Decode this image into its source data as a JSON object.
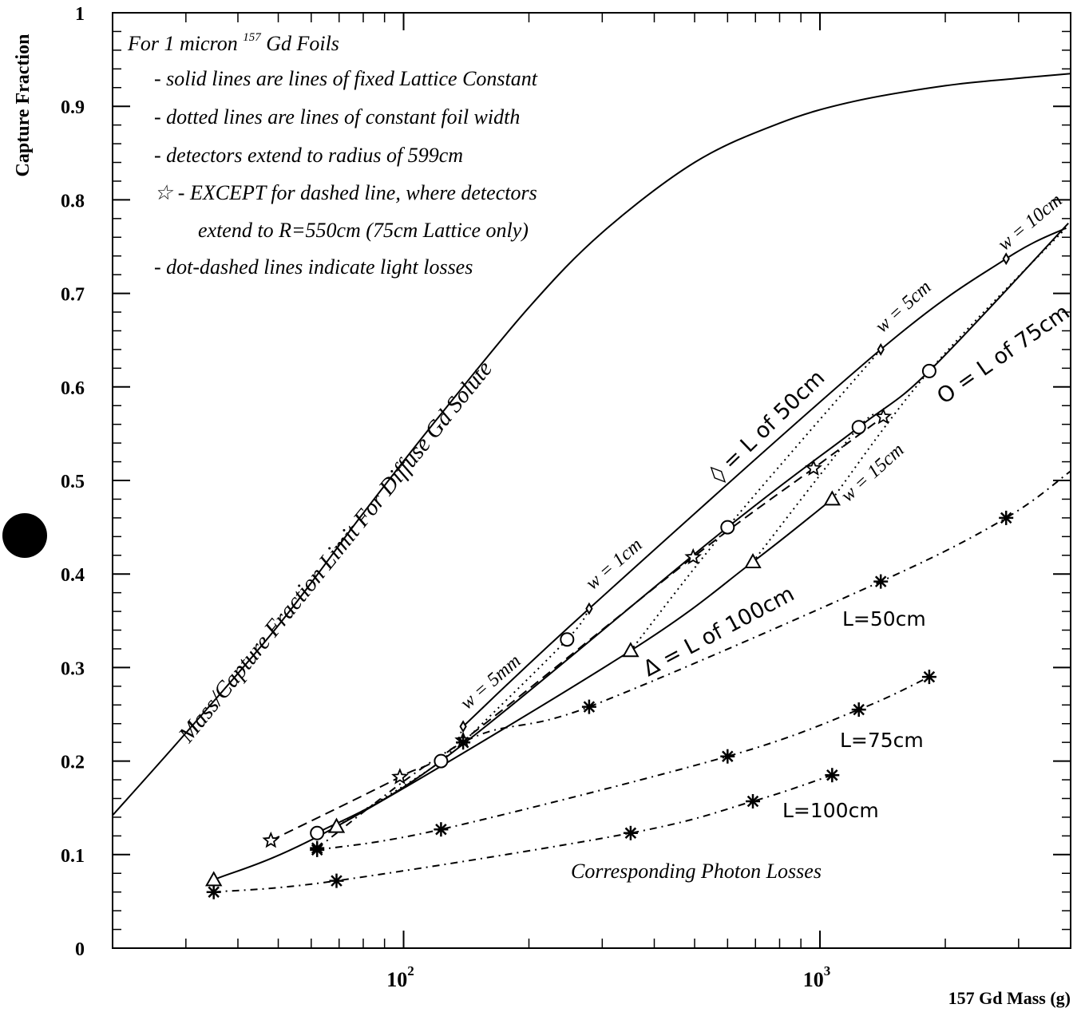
{
  "chart_data": {
    "type": "line",
    "title": "",
    "xlabel": "157 Gd Mass (g)",
    "ylabel": "Capture Fraction",
    "x_scale": "log",
    "xlim": [
      20,
      4000
    ],
    "ylim": [
      0,
      1
    ],
    "x_tick_labels": [
      {
        "value": 100,
        "base": "10",
        "exp": "2"
      },
      {
        "value": 1000,
        "base": "10",
        "exp": "3"
      }
    ],
    "y_ticks": [
      0,
      0.1,
      0.2,
      0.3,
      0.4,
      0.5,
      0.6,
      0.7,
      0.8,
      0.9,
      1
    ],
    "y_tick_labels": [
      "0",
      "0.1",
      "0.2",
      "0.3",
      "0.4",
      "0.5",
      "0.6",
      "0.7",
      "0.8",
      "0.9",
      "1"
    ],
    "legend_box": {
      "title_pre": "For 1 micron ",
      "title_sup": "157",
      "title_post": " Gd Foils",
      "lines": [
        "- solid lines are lines of fixed Lattice Constant",
        "- dotted lines are lines of constant foil width",
        "- detectors extend to radius of 599cm",
        "☆ - EXCEPT for dashed line, where detectors",
        "extend to R=550cm (75cm Lattice only)",
        "- dot-dashed lines indicate light losses"
      ]
    },
    "series": [
      {
        "name": "Mass/Capture Fraction Limit For Diffuse Gd Solute",
        "style": "solid",
        "x": [
          20,
          30,
          50,
          80,
          120,
          200,
          300,
          500,
          800,
          1200,
          2000,
          3000,
          4000
        ],
        "y": [
          0.142,
          0.23,
          0.345,
          0.465,
          0.565,
          0.685,
          0.765,
          0.84,
          0.882,
          0.905,
          0.922,
          0.93,
          0.935
        ]
      },
      {
        "name": "◊ = L of 50cm",
        "style": "solid",
        "marker": "diamond",
        "x": [
          139,
          279,
          1400,
          2800,
          3900
        ],
        "y": [
          0.237,
          0.363,
          0.64,
          0.737,
          0.77
        ]
      },
      {
        "name": "O = L of 75cm",
        "style": "solid",
        "marker": "circle",
        "x": [
          62,
          123,
          600,
          1240,
          1830,
          3950
        ],
        "y": [
          0.123,
          0.2,
          0.45,
          0.557,
          0.617,
          0.775
        ]
      },
      {
        "name": "Δ = L of 100cm",
        "style": "solid",
        "marker": "triangle",
        "x": [
          35,
          69,
          351,
          690,
          1070
        ],
        "y": [
          0.073,
          0.13,
          0.318,
          0.413,
          0.48
        ]
      },
      {
        "name": "",
        "style": "dashed",
        "marker": "star",
        "x": [
          48,
          98,
          139,
          496,
          965,
          1420
        ],
        "y": [
          0.115,
          0.183,
          0.222,
          0.418,
          0.513,
          0.568
        ]
      },
      {
        "name": "L=50cm",
        "style": "dotdash",
        "marker": "asterisk",
        "x": [
          62,
          139,
          279,
          1400,
          2800,
          4000
        ],
        "y": [
          0.107,
          0.22,
          0.258,
          0.392,
          0.46,
          0.51
        ]
      },
      {
        "name": "L=75cm",
        "style": "dotdash",
        "marker": "asterisk",
        "x": [
          62,
          123,
          600,
          1240,
          1830
        ],
        "y": [
          0.105,
          0.127,
          0.205,
          0.255,
          0.29
        ]
      },
      {
        "name": "L=100cm",
        "style": "dotdash",
        "marker": "asterisk",
        "x": [
          35,
          69,
          351,
          690,
          1070
        ],
        "y": [
          0.06,
          0.072,
          0.123,
          0.157,
          0.185
        ]
      }
    ],
    "dotted_series": [
      {
        "name": "w = 5mm",
        "x": [
          139,
          123,
          69
        ],
        "y": [
          0.237,
          0.2,
          0.13
        ]
      },
      {
        "name": "w = 1cm",
        "x": [
          279,
          247,
          139
        ],
        "y": [
          0.363,
          0.33,
          0.22
        ]
      },
      {
        "name": "w = 5cm",
        "x": [
          1400,
          600,
          351
        ],
        "y": [
          0.64,
          0.45,
          0.318
        ]
      },
      {
        "name": "w = 15cm",
        "x": [
          1420,
          1240,
          690
        ],
        "y": [
          0.568,
          0.557,
          0.413
        ]
      },
      {
        "name": "w = 10cm",
        "x": [
          3900,
          1830,
          1070
        ],
        "y": [
          0.77,
          0.617,
          0.48
        ]
      }
    ],
    "annotations": [
      "Mass/Capture Fraction Limit For Diffuse Gd Solute",
      "◊ = L of 50cm",
      "O = L of 75cm",
      "Δ = L of 100cm",
      "w = 5mm",
      "w = 1cm",
      "w = 5cm",
      "w = 10cm",
      "w = 15cm",
      "L=50cm",
      "L=75cm",
      "L=100cm",
      "Corresponding Photon Losses"
    ]
  }
}
